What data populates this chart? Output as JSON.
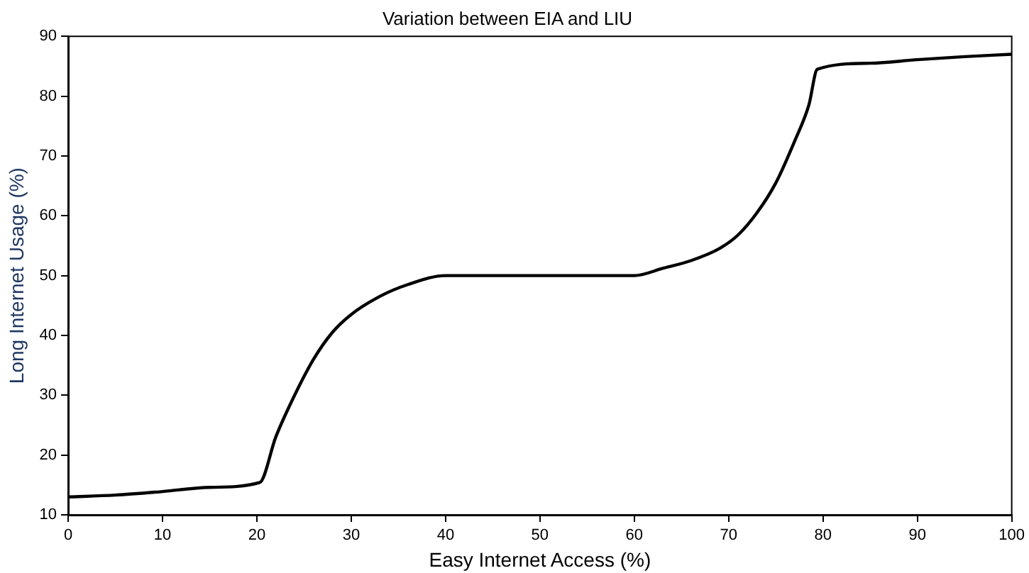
{
  "chart_data": {
    "type": "line",
    "title": "Variation between EIA and LIU",
    "xlabel": "Easy Internet Access (%)",
    "ylabel": "Long Internet Usage (%)",
    "x": [
      0,
      5,
      10,
      15,
      20.3,
      22,
      24,
      26,
      28,
      30,
      33,
      36,
      40,
      50,
      60,
      63,
      66,
      69,
      71,
      73,
      75,
      77,
      78.5,
      79.4,
      85,
      90,
      95,
      100
    ],
    "series": [
      {
        "color": "#000000",
        "values": [
          13,
          13.3,
          13.9,
          14.6,
          15.4,
          23,
          30,
          36,
          40.5,
          43.5,
          46.5,
          48.5,
          50,
          50,
          50,
          51.2,
          52.5,
          54.5,
          56.8,
          60.5,
          65.5,
          72.5,
          78.5,
          84.5,
          85.5,
          86.1,
          86.6,
          87
        ]
      }
    ],
    "xlim": [
      0,
      100
    ],
    "xticks": [
      0,
      10,
      20,
      30,
      40,
      50,
      60,
      70,
      80,
      90,
      100
    ],
    "ylim": [
      10,
      90
    ],
    "yticks": [
      10,
      20,
      30,
      40,
      50,
      60,
      70,
      80,
      90
    ],
    "grid": false,
    "legend": false,
    "marker": "none",
    "line_style": "solid"
  }
}
